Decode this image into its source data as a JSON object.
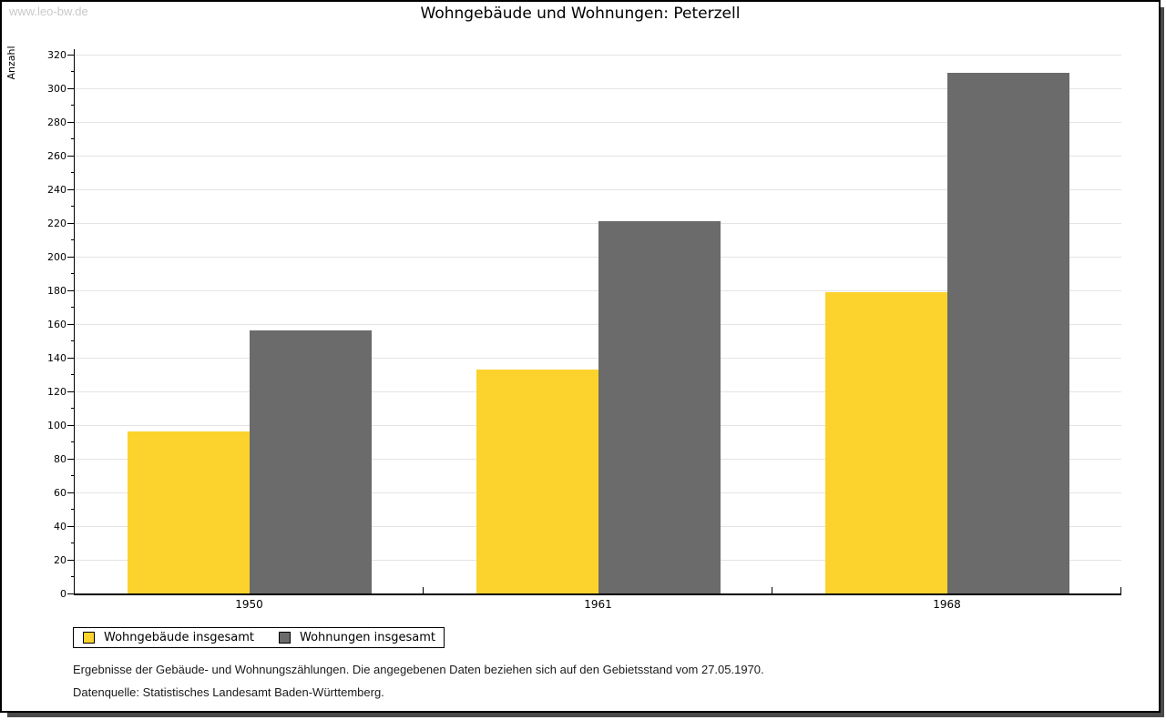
{
  "page": {
    "watermark": "www.leo-bw.de"
  },
  "chart_data": {
    "type": "bar",
    "title": "Wohngebäude und Wohnungen: Peterzell",
    "categories": [
      "1950",
      "1961",
      "1968"
    ],
    "series": [
      {
        "name": "Wohngebäude insgesamt",
        "color": "#fcd32d",
        "values": [
          96,
          133,
          179
        ]
      },
      {
        "name": "Wohnungen insgesamt",
        "color": "#6b6b6b",
        "values": [
          156,
          221,
          309
        ]
      }
    ],
    "xlabel": "",
    "ylabel": "Anzahl",
    "ylim": [
      0,
      320
    ],
    "ytick_step": 20,
    "yminor_step": 10,
    "grid": "horizontal-major",
    "legend_position": "bottom-left"
  },
  "footnotes": {
    "line1": "Ergebnisse der Gebäude- und Wohnungszählungen. Die angegebenen Daten beziehen sich auf den Gebietsstand vom 27.05.1970.",
    "line2": "Datenquelle: Statistisches Landesamt Baden-Württemberg."
  },
  "colors": {
    "gridline": "#e4e4e4",
    "axis": "#000000",
    "watermark": "#c9c9c9",
    "shadow": "#4a4a4a",
    "text": "#000000",
    "background": "#ffffff"
  }
}
